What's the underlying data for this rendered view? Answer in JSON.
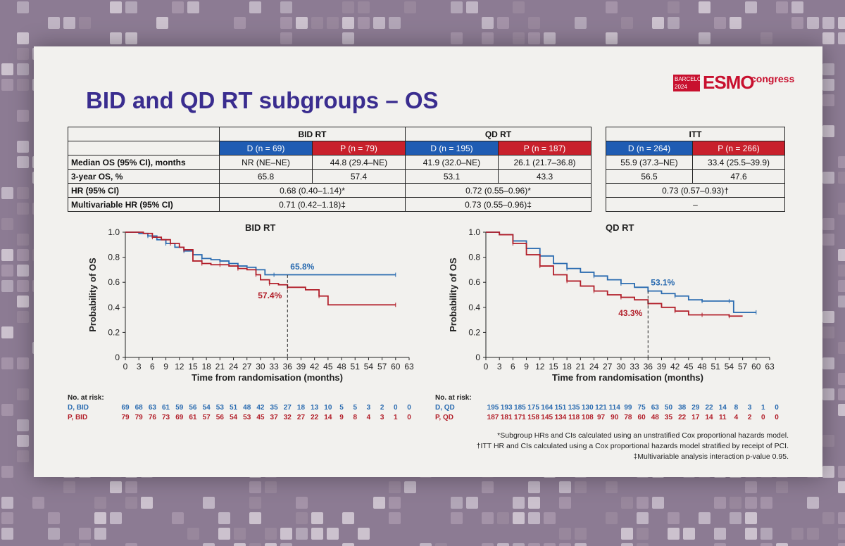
{
  "slide": {
    "title": "BID and QD RT subgroups – OS",
    "logo": {
      "city": "BARCELONA",
      "year": "2024",
      "brand": "ESMO",
      "suffix": "congress"
    }
  },
  "colors": {
    "durvalumab": "#2a6bb0",
    "placebo": "#b21f2a",
    "title": "#3a2d8f"
  },
  "table": {
    "groups": [
      "BID RT",
      "QD RT",
      "ITT"
    ],
    "arms": [
      "D (n = 69)",
      "P (n = 79)",
      "D (n = 195)",
      "P (n = 187)",
      "D (n = 264)",
      "P (n = 266)"
    ],
    "rows": [
      {
        "label": "Median OS (95% CI), months",
        "values": [
          "NR (NE–NE)",
          "44.8 (29.4–NE)",
          "41.9 (32.0–NE)",
          "26.1 (21.7–36.8)",
          "55.9 (37.3–NE)",
          "33.4 (25.5–39.9)"
        ]
      },
      {
        "label": "3-year OS, %",
        "values": [
          "65.8",
          "57.4",
          "53.1",
          "43.3",
          "56.5",
          "47.6"
        ]
      },
      {
        "label": "HR (95% CI)",
        "values": [
          "0.68 (0.40–1.14)*",
          "0.72 (0.55–0.96)*",
          "0.73 (0.57–0.93)†"
        ]
      },
      {
        "label": "Multivariable HR (95% CI)",
        "values": [
          "0.71 (0.42–1.18)‡",
          "0.73 (0.55–0.96)‡",
          "–"
        ]
      }
    ]
  },
  "chart_data": [
    {
      "type": "line",
      "title": "BID RT",
      "xlabel": "Time from randomisation (months)",
      "ylabel": "Probability of OS",
      "xlim": [
        0,
        63
      ],
      "ylim": [
        0,
        1.0
      ],
      "xticks": [
        0,
        3,
        6,
        9,
        12,
        15,
        18,
        21,
        24,
        27,
        30,
        33,
        36,
        39,
        42,
        45,
        48,
        51,
        54,
        57,
        60,
        63
      ],
      "yticks": [
        0,
        0.2,
        0.4,
        0.6,
        0.8,
        1.0
      ],
      "ytick_labels": [
        "0",
        "0.2",
        "0.4",
        "0.6",
        "0.8",
        "1.0"
      ],
      "reference_x": 36,
      "series": [
        {
          "name": "D, BID",
          "color": "#2a6bb0",
          "annotation": "65.8%",
          "annotation_value": 0.658,
          "x": [
            0,
            3,
            5,
            7,
            9,
            11,
            13,
            15,
            17,
            19,
            21,
            23,
            25,
            27,
            29,
            31,
            33,
            35,
            60
          ],
          "y": [
            1.0,
            0.99,
            0.97,
            0.94,
            0.91,
            0.88,
            0.85,
            0.82,
            0.79,
            0.78,
            0.77,
            0.75,
            0.73,
            0.72,
            0.7,
            0.66,
            0.66,
            0.66,
            0.66
          ]
        },
        {
          "name": "P, BID",
          "color": "#b21f2a",
          "annotation": "57.4%",
          "annotation_value": 0.574,
          "x": [
            0,
            4,
            6,
            8,
            10,
            12,
            13,
            15,
            17,
            19,
            21,
            23,
            25,
            27,
            29,
            30,
            32,
            34,
            36,
            40,
            43,
            45,
            60
          ],
          "y": [
            1.0,
            0.99,
            0.96,
            0.94,
            0.91,
            0.88,
            0.86,
            0.77,
            0.75,
            0.74,
            0.74,
            0.73,
            0.71,
            0.7,
            0.66,
            0.62,
            0.59,
            0.58,
            0.56,
            0.54,
            0.49,
            0.42,
            0.42
          ]
        }
      ],
      "risk_table": {
        "header": "No. at risk:",
        "rows": [
          {
            "label": "D, BID",
            "values": [
              69,
              68,
              63,
              61,
              59,
              56,
              54,
              53,
              51,
              48,
              42,
              35,
              27,
              18,
              13,
              10,
              5,
              5,
              3,
              2,
              0,
              0
            ]
          },
          {
            "label": "P, BID",
            "values": [
              79,
              79,
              76,
              73,
              69,
              61,
              57,
              56,
              54,
              53,
              45,
              37,
              32,
              27,
              22,
              14,
              9,
              8,
              4,
              3,
              1,
              0
            ]
          }
        ]
      }
    },
    {
      "type": "line",
      "title": "QD RT",
      "xlabel": "Time from randomisation (months)",
      "ylabel": "Probability of OS",
      "xlim": [
        0,
        63
      ],
      "ylim": [
        0,
        1.0
      ],
      "xticks": [
        0,
        3,
        6,
        9,
        12,
        15,
        18,
        21,
        24,
        27,
        30,
        33,
        36,
        39,
        42,
        45,
        48,
        51,
        54,
        57,
        60,
        63
      ],
      "yticks": [
        0,
        0.2,
        0.4,
        0.6,
        0.8,
        1.0
      ],
      "ytick_labels": [
        "0",
        "0.2",
        "0.4",
        "0.6",
        "0.8",
        "1.0"
      ],
      "reference_x": 36,
      "series": [
        {
          "name": "D, QD",
          "color": "#2a6bb0",
          "annotation": "53.1%",
          "annotation_value": 0.531,
          "x": [
            0,
            3,
            6,
            9,
            12,
            15,
            18,
            21,
            24,
            27,
            30,
            33,
            36,
            39,
            42,
            45,
            48,
            51,
            54,
            55,
            60
          ],
          "y": [
            1.0,
            0.98,
            0.93,
            0.87,
            0.81,
            0.75,
            0.71,
            0.68,
            0.65,
            0.62,
            0.59,
            0.56,
            0.53,
            0.51,
            0.49,
            0.46,
            0.45,
            0.45,
            0.45,
            0.36,
            0.36
          ]
        },
        {
          "name": "P, QD",
          "color": "#b21f2a",
          "annotation": "43.3%",
          "annotation_value": 0.433,
          "x": [
            0,
            3,
            6,
            9,
            12,
            15,
            18,
            21,
            24,
            27,
            30,
            33,
            36,
            39,
            42,
            45,
            48,
            51,
            54,
            57
          ],
          "y": [
            1.0,
            0.98,
            0.91,
            0.82,
            0.73,
            0.66,
            0.61,
            0.57,
            0.53,
            0.5,
            0.48,
            0.46,
            0.43,
            0.4,
            0.37,
            0.34,
            0.34,
            0.34,
            0.33,
            0.33
          ]
        }
      ],
      "risk_table": {
        "header": "No. at risk:",
        "rows": [
          {
            "label": "D, QD",
            "values": [
              195,
              193,
              185,
              175,
              164,
              151,
              135,
              130,
              121,
              114,
              99,
              75,
              63,
              50,
              38,
              29,
              22,
              14,
              8,
              3,
              1,
              0
            ]
          },
          {
            "label": "P, QD",
            "values": [
              187,
              181,
              171,
              158,
              145,
              134,
              118,
              108,
              97,
              90,
              78,
              60,
              48,
              35,
              22,
              17,
              14,
              11,
              4,
              2,
              0,
              0
            ]
          }
        ]
      }
    }
  ],
  "footnotes": [
    "*Subgroup HRs and CIs calculated using an unstratified Cox proportional hazards model.",
    "†ITT HR and CIs calculated using a Cox proportional hazards model stratified by receipt of PCI.",
    "‡Multivariable analysis interaction p-value 0.95."
  ]
}
